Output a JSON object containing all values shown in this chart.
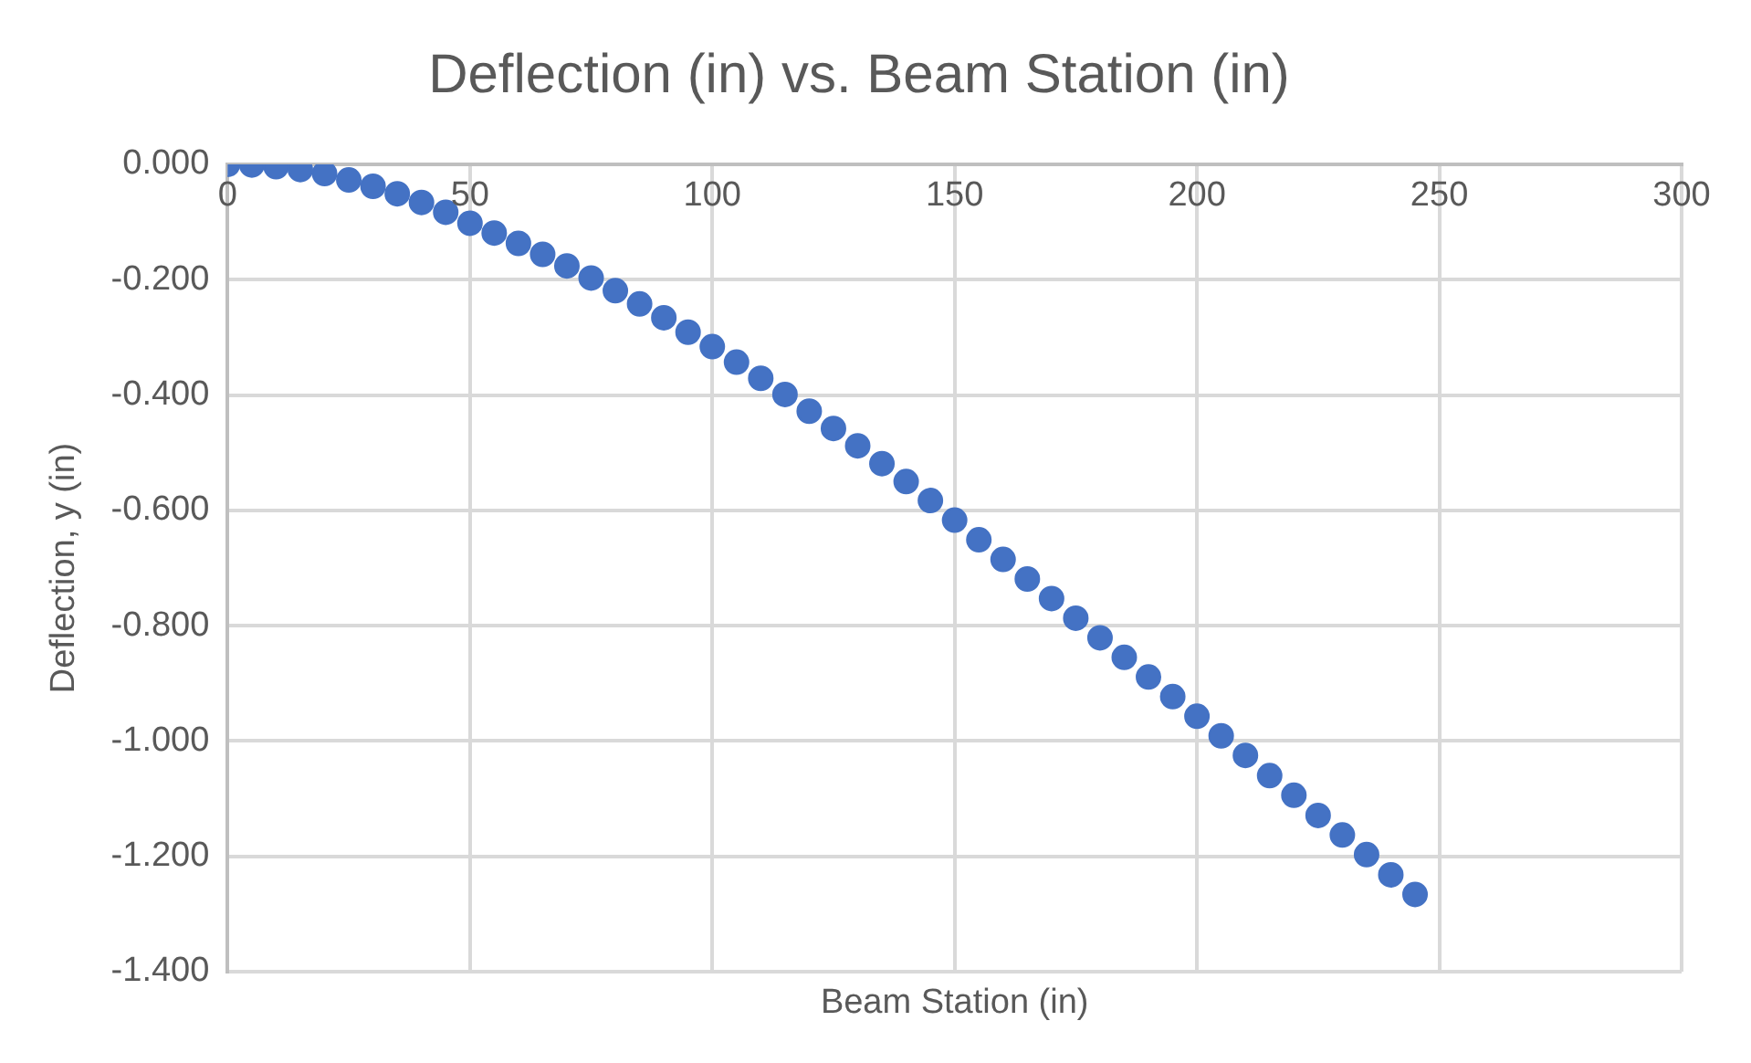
{
  "chart_data": {
    "type": "scatter",
    "title": "Deflection (in) vs. Beam Station (in)",
    "xlabel": "Beam Station (in)",
    "ylabel": "Deflection, y (in)",
    "x": [
      0,
      5,
      10,
      15,
      20,
      25,
      30,
      35,
      40,
      45,
      50,
      55,
      60,
      65,
      70,
      75,
      80,
      85,
      90,
      95,
      100,
      105,
      110,
      115,
      120,
      125,
      130,
      135,
      140,
      145,
      150,
      155,
      160,
      165,
      170,
      175,
      180,
      185,
      190,
      195,
      200,
      205,
      210,
      215,
      220,
      225,
      230,
      235,
      240,
      245
    ],
    "series": [
      {
        "color": "#4472c4",
        "values": [
          0,
          -0.001,
          -0.004,
          -0.009,
          -0.016,
          -0.027,
          -0.038,
          -0.051,
          -0.066,
          -0.083,
          -0.102,
          -0.119,
          -0.137,
          -0.156,
          -0.176,
          -0.197,
          -0.219,
          -0.242,
          -0.266,
          -0.291,
          -0.316,
          -0.343,
          -0.371,
          -0.399,
          -0.428,
          -0.458,
          -0.488,
          -0.519,
          -0.55,
          -0.583,
          -0.617,
          -0.651,
          -0.685,
          -0.719,
          -0.753,
          -0.787,
          -0.821,
          -0.855,
          -0.889,
          -0.923,
          -0.957,
          -0.991,
          -1.025,
          -1.06,
          -1.094,
          -1.129,
          -1.163,
          -1.197,
          -1.232,
          -1.266
        ]
      }
    ],
    "xlim": [
      0,
      300
    ],
    "xticks": [
      0,
      50,
      100,
      150,
      200,
      250,
      300
    ],
    "ylim": [
      -1.4,
      0
    ],
    "yticks": [
      {
        "value": 0,
        "label": "0.000"
      },
      {
        "value": -0.2,
        "label": "-0.200"
      },
      {
        "value": -0.4,
        "label": "-0.400"
      },
      {
        "value": -0.6,
        "label": "-0.600"
      },
      {
        "value": -0.8,
        "label": "-0.800"
      },
      {
        "value": -1,
        "label": "-1.000"
      },
      {
        "value": -1.2,
        "label": "-1.200"
      },
      {
        "value": -1.4,
        "label": "-1.400"
      }
    ],
    "grid": true,
    "legend": false,
    "marker": "circle"
  }
}
